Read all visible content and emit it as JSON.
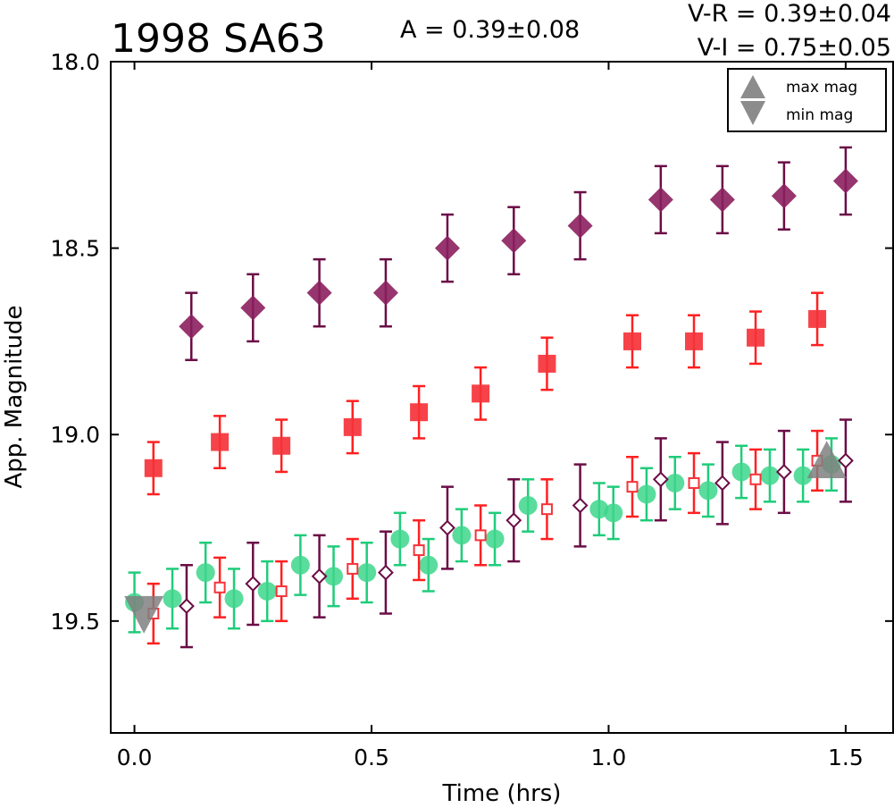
{
  "chart_data": {
    "type": "scatter",
    "title": "1998 SA63",
    "annotations": {
      "amplitude": "A  = 0.39±0.08",
      "v_minus_r": "V-R = 0.39±0.04",
      "v_minus_i": "V-I  = 0.75±0.05"
    },
    "xlabel": "Time (hrs)",
    "ylabel": "App. Magnitude",
    "xlim": [
      -0.05,
      1.6
    ],
    "ylim": [
      19.8,
      18.0
    ],
    "y_inverted": true,
    "xticks": [
      0.0,
      0.5,
      1.0,
      1.5
    ],
    "xtick_labels": [
      "0.0",
      "0.5",
      "1.0",
      "1.5"
    ],
    "yticks": [
      18.0,
      18.5,
      19.0,
      19.5
    ],
    "ytick_labels": [
      "18.0",
      "18.5",
      "19.0",
      "19.5"
    ],
    "grid": false,
    "legend": {
      "placement": "top-right",
      "entries": [
        {
          "label": "max mag",
          "marker": "triangle-up",
          "color": "#808080"
        },
        {
          "label": "min mag",
          "marker": "triangle-down",
          "color": "#808080"
        }
      ]
    },
    "series": [
      {
        "marker": "filled-diamond",
        "color": "#8b1f5e",
        "errorbar_color": "#6b0d45",
        "points": [
          {
            "x": 0.12,
            "y": 18.71,
            "err": 0.09
          },
          {
            "x": 0.25,
            "y": 18.66,
            "err": 0.09
          },
          {
            "x": 0.39,
            "y": 18.62,
            "err": 0.09
          },
          {
            "x": 0.53,
            "y": 18.62,
            "err": 0.09
          },
          {
            "x": 0.66,
            "y": 18.5,
            "err": 0.09
          },
          {
            "x": 0.8,
            "y": 18.48,
            "err": 0.09
          },
          {
            "x": 0.94,
            "y": 18.44,
            "err": 0.09
          },
          {
            "x": 1.11,
            "y": 18.37,
            "err": 0.09
          },
          {
            "x": 1.24,
            "y": 18.37,
            "err": 0.09
          },
          {
            "x": 1.37,
            "y": 18.36,
            "err": 0.09
          },
          {
            "x": 1.5,
            "y": 18.32,
            "err": 0.09
          }
        ]
      },
      {
        "marker": "filled-square",
        "color": "#f5333a",
        "errorbar_color": "#ff2020",
        "points": [
          {
            "x": 0.04,
            "y": 19.09,
            "err": 0.07
          },
          {
            "x": 0.18,
            "y": 19.02,
            "err": 0.07
          },
          {
            "x": 0.31,
            "y": 19.03,
            "err": 0.07
          },
          {
            "x": 0.46,
            "y": 18.98,
            "err": 0.07
          },
          {
            "x": 0.6,
            "y": 18.94,
            "err": 0.07
          },
          {
            "x": 0.73,
            "y": 18.89,
            "err": 0.07
          },
          {
            "x": 0.87,
            "y": 18.81,
            "err": 0.07
          },
          {
            "x": 1.05,
            "y": 18.75,
            "err": 0.07
          },
          {
            "x": 1.18,
            "y": 18.75,
            "err": 0.07
          },
          {
            "x": 1.31,
            "y": 18.74,
            "err": 0.07
          },
          {
            "x": 1.44,
            "y": 18.69,
            "err": 0.07
          }
        ]
      },
      {
        "marker": "filled-circle",
        "color": "#3dd68c",
        "errorbar_color": "#1fcc7a",
        "points": [
          {
            "x": 0.0,
            "y": 19.45,
            "err": 0.08
          },
          {
            "x": 0.08,
            "y": 19.44,
            "err": 0.08
          },
          {
            "x": 0.15,
            "y": 19.37,
            "err": 0.08
          },
          {
            "x": 0.21,
            "y": 19.44,
            "err": 0.08
          },
          {
            "x": 0.28,
            "y": 19.42,
            "err": 0.08
          },
          {
            "x": 0.35,
            "y": 19.35,
            "err": 0.08
          },
          {
            "x": 0.42,
            "y": 19.38,
            "err": 0.08
          },
          {
            "x": 0.49,
            "y": 19.37,
            "err": 0.08
          },
          {
            "x": 0.56,
            "y": 19.28,
            "err": 0.07
          },
          {
            "x": 0.62,
            "y": 19.35,
            "err": 0.07
          },
          {
            "x": 0.69,
            "y": 19.27,
            "err": 0.07
          },
          {
            "x": 0.76,
            "y": 19.28,
            "err": 0.07
          },
          {
            "x": 0.83,
            "y": 19.19,
            "err": 0.07
          },
          {
            "x": 0.98,
            "y": 19.2,
            "err": 0.07
          },
          {
            "x": 1.01,
            "y": 19.21,
            "err": 0.07
          },
          {
            "x": 1.08,
            "y": 19.16,
            "err": 0.07
          },
          {
            "x": 1.14,
            "y": 19.13,
            "err": 0.07
          },
          {
            "x": 1.21,
            "y": 19.15,
            "err": 0.07
          },
          {
            "x": 1.28,
            "y": 19.1,
            "err": 0.07
          },
          {
            "x": 1.34,
            "y": 19.11,
            "err": 0.07
          },
          {
            "x": 1.41,
            "y": 19.11,
            "err": 0.07
          },
          {
            "x": 1.47,
            "y": 19.08,
            "err": 0.07
          }
        ]
      },
      {
        "marker": "open-square",
        "color": "#f5333a",
        "errorbar_color": "#ff2020",
        "points": [
          {
            "x": 0.04,
            "y": 19.48,
            "err": 0.08
          },
          {
            "x": 0.18,
            "y": 19.41,
            "err": 0.08
          },
          {
            "x": 0.31,
            "y": 19.42,
            "err": 0.08
          },
          {
            "x": 0.46,
            "y": 19.36,
            "err": 0.08
          },
          {
            "x": 0.6,
            "y": 19.31,
            "err": 0.08
          },
          {
            "x": 0.73,
            "y": 19.27,
            "err": 0.08
          },
          {
            "x": 0.87,
            "y": 19.2,
            "err": 0.08
          },
          {
            "x": 1.05,
            "y": 19.14,
            "err": 0.08
          },
          {
            "x": 1.18,
            "y": 19.13,
            "err": 0.08
          },
          {
            "x": 1.31,
            "y": 19.12,
            "err": 0.08
          },
          {
            "x": 1.44,
            "y": 19.07,
            "err": 0.08
          }
        ]
      },
      {
        "marker": "open-diamond",
        "color": "#6b0d45",
        "errorbar_color": "#6b0d45",
        "points": [
          {
            "x": 0.11,
            "y": 19.46,
            "err": 0.11
          },
          {
            "x": 0.25,
            "y": 19.4,
            "err": 0.11
          },
          {
            "x": 0.39,
            "y": 19.38,
            "err": 0.11
          },
          {
            "x": 0.53,
            "y": 19.37,
            "err": 0.11
          },
          {
            "x": 0.66,
            "y": 19.25,
            "err": 0.11
          },
          {
            "x": 0.8,
            "y": 19.23,
            "err": 0.11
          },
          {
            "x": 0.94,
            "y": 19.19,
            "err": 0.11
          },
          {
            "x": 1.11,
            "y": 19.12,
            "err": 0.11
          },
          {
            "x": 1.24,
            "y": 19.13,
            "err": 0.11
          },
          {
            "x": 1.37,
            "y": 19.1,
            "err": 0.11
          },
          {
            "x": 1.5,
            "y": 19.07,
            "err": 0.11
          }
        ]
      }
    ],
    "extrema_markers": [
      {
        "kind": "min mag",
        "x": 0.02,
        "y": 19.47,
        "marker": "triangle-down",
        "color": "#808080"
      },
      {
        "kind": "max mag",
        "x": 1.46,
        "y": 19.08,
        "marker": "triangle-up",
        "color": "#808080"
      }
    ]
  }
}
